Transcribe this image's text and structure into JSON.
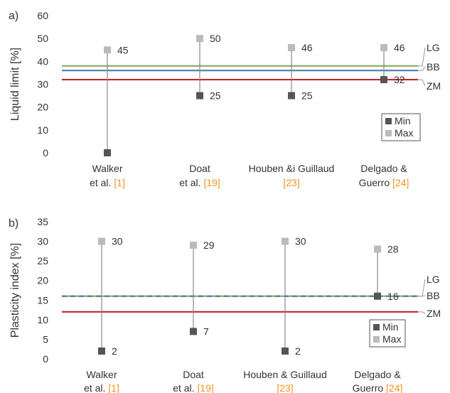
{
  "chart_data": [
    {
      "type": "scatter",
      "panel_label": "a)",
      "ylabel": "Liquid limit [%]",
      "ylim": [
        0,
        60
      ],
      "yticks": [
        0,
        10,
        20,
        30,
        40,
        50,
        60
      ],
      "grid": false,
      "legend_position": "bottom-right",
      "categories": [
        {
          "lines": [
            "Walker",
            "et al."
          ],
          "ref": "[1]"
        },
        {
          "lines": [
            "Doat",
            "et al."
          ],
          "ref": "[19]"
        },
        {
          "lines": [
            "Houben &i Guillaud",
            ""
          ],
          "ref": "[23]"
        },
        {
          "lines": [
            "Delgado &",
            "Guerro"
          ],
          "ref": "[24]"
        }
      ],
      "series": [
        {
          "name": "Min",
          "color": "#555555",
          "values": [
            0,
            25,
            25,
            32
          ],
          "labels": [
            "",
            "25",
            "25",
            "32"
          ]
        },
        {
          "name": "Max",
          "color": "#bbbbbb",
          "values": [
            45,
            50,
            46,
            46
          ],
          "labels": [
            "45",
            "50",
            "46",
            "46"
          ]
        }
      ],
      "reference_lines": [
        {
          "name": "LG",
          "value": 38,
          "color": "#8fae62"
        },
        {
          "name": "BB",
          "value": 36,
          "color": "#4f7dae"
        },
        {
          "name": "ZM",
          "value": 32,
          "color": "#c0272d"
        }
      ]
    },
    {
      "type": "scatter",
      "panel_label": "b)",
      "ylabel": "Plasticity index [%]",
      "ylim": [
        0,
        35
      ],
      "yticks": [
        0,
        5,
        10,
        15,
        20,
        25,
        30,
        35
      ],
      "grid": false,
      "legend_position": "bottom-right",
      "categories": [
        {
          "lines": [
            "Walker",
            "et al."
          ],
          "ref": "[1]"
        },
        {
          "lines": [
            "Doat",
            "et al."
          ],
          "ref": "[19]"
        },
        {
          "lines": [
            "Houben & Guillaud",
            ""
          ],
          "ref": "[23]"
        },
        {
          "lines": [
            "Delgado &",
            "Guerro"
          ],
          "ref": "[24]"
        }
      ],
      "series": [
        {
          "name": "Min",
          "color": "#555555",
          "values": [
            2,
            7,
            2,
            16
          ],
          "labels": [
            "2",
            "7",
            "2",
            "16"
          ]
        },
        {
          "name": "Max",
          "color": "#bbbbbb",
          "values": [
            30,
            29,
            30,
            28
          ],
          "labels": [
            "30",
            "29",
            "30",
            "28"
          ]
        }
      ],
      "reference_lines": [
        {
          "name": "LG",
          "value": 16,
          "color": "#8fae62"
        },
        {
          "name": "BB",
          "value": 16,
          "color": "#4f7dae"
        },
        {
          "name": "ZM",
          "value": 12,
          "color": "#c0272d"
        }
      ]
    }
  ]
}
